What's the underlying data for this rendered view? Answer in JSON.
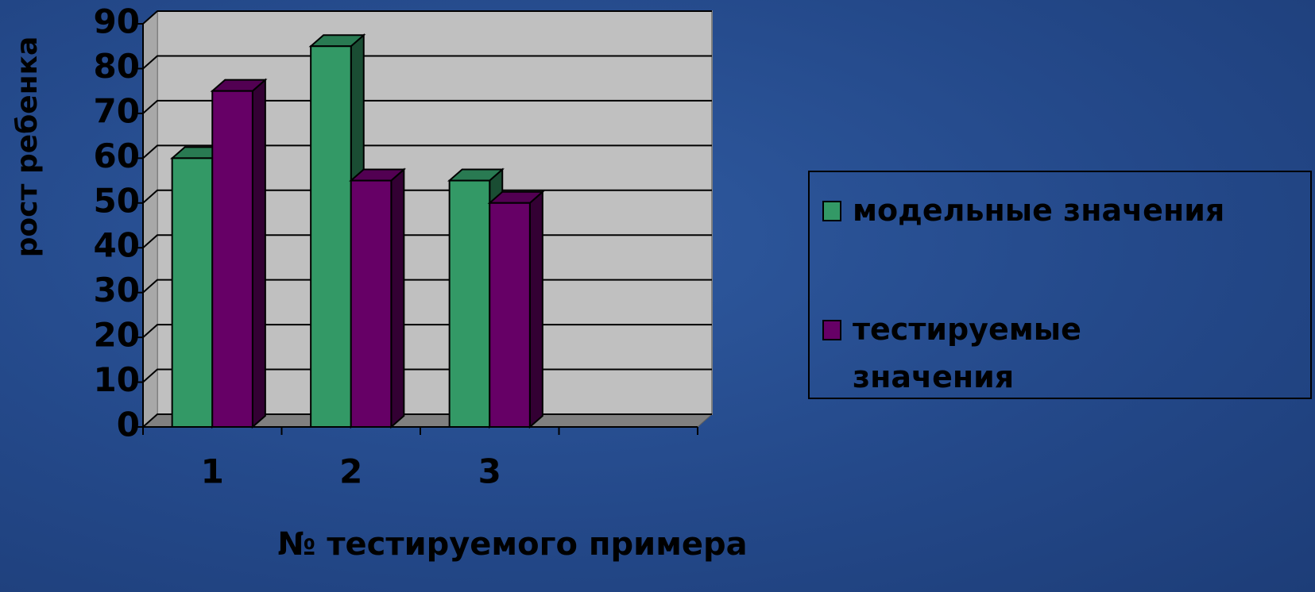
{
  "chart_data": {
    "type": "bar3d",
    "y_label": "рост ребенка",
    "x_label": "№ тестируемого примера",
    "categories": [
      "1",
      "2",
      "3",
      null
    ],
    "series": [
      {
        "name": "модельные значения",
        "color": "#339966",
        "values": [
          60,
          85,
          55,
          null
        ]
      },
      {
        "name": "тестируемые значения",
        "color": "#660066",
        "values": [
          75,
          55,
          50,
          null
        ]
      }
    ],
    "ylim": [
      0,
      90
    ],
    "yticks": [
      0,
      10,
      20,
      30,
      40,
      50,
      60,
      70,
      80,
      90
    ],
    "grid": true,
    "legend": "right"
  }
}
